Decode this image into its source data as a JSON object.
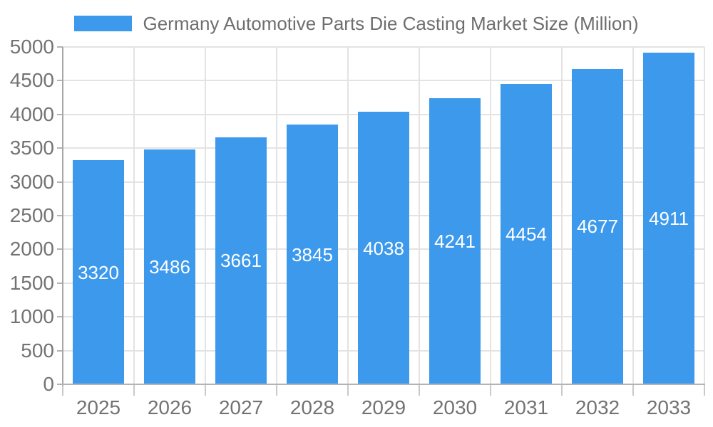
{
  "legend": {
    "label": "Germany Automotive Parts Die Casting Market Size (Million)"
  },
  "chart_data": {
    "type": "bar",
    "title": "Germany Automotive Parts Die Casting Market Size (Million)",
    "series_name": "Germany Automotive Parts Die Casting Market Size (Million)",
    "categories": [
      "2025",
      "2026",
      "2027",
      "2028",
      "2029",
      "2030",
      "2031",
      "2032",
      "2033"
    ],
    "values": [
      3320,
      3486,
      3661,
      3845,
      4038,
      4241,
      4454,
      4677,
      4911
    ],
    "value_labels": [
      "3320",
      "3486",
      "3661",
      "3845",
      "4038",
      "4241",
      "4454",
      "4677",
      "4911"
    ],
    "xlabel": "",
    "ylabel": "",
    "ylim": [
      0,
      5000
    ],
    "ytick_step": 500,
    "ytick_labels": [
      "0",
      "500",
      "1000",
      "1500",
      "2000",
      "2500",
      "3000",
      "3500",
      "4000",
      "4500",
      "5000"
    ],
    "grid": true,
    "legend_position": "top-center",
    "value_label_position": "inside-center"
  },
  "colors": {
    "bar": "#3c99ec",
    "value_label": "#ffffff",
    "gridline": "#e3e3e3",
    "axis_line": "#a6a6a6",
    "tick_label": "#737373",
    "legend_text": "#6e6e6e",
    "background": "#ffffff"
  }
}
